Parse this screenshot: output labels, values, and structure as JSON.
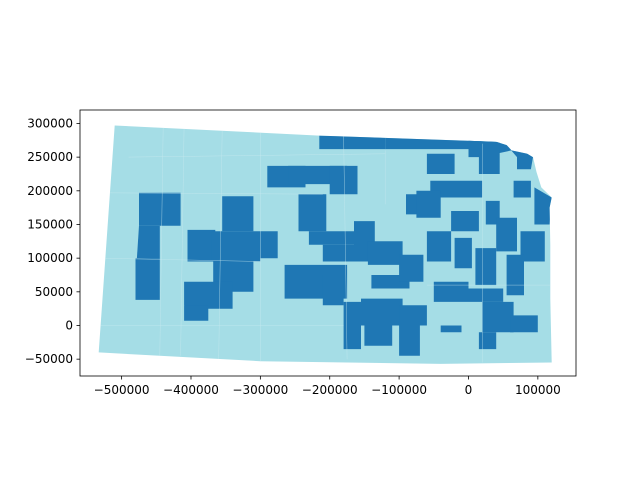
{
  "chart_data": {
    "type": "map",
    "title": "",
    "xlabel": "",
    "ylabel": "",
    "xlim": [
      -560000,
      155000
    ],
    "ylim": [
      -75000,
      320000
    ],
    "x_ticks": [
      -500000,
      -400000,
      -300000,
      -200000,
      -100000,
      0,
      100000
    ],
    "x_tick_labels": [
      "−500000",
      "−400000",
      "−300000",
      "−200000",
      "−100000",
      "0",
      "100000"
    ],
    "y_ticks": [
      -50000,
      0,
      50000,
      100000,
      150000,
      200000,
      250000,
      300000
    ],
    "y_tick_labels": [
      "−50000",
      "0",
      "50000",
      "100000",
      "150000",
      "200000",
      "250000",
      "300000"
    ],
    "grid": false,
    "legend": "none",
    "colors": {
      "base": "#a5dde6",
      "highlight": "#1f77b4",
      "boundary": "#c9e9ef"
    },
    "state_outline": [
      [
        -510000,
        297000
      ],
      [
        -215000,
        282000
      ],
      [
        40000,
        273000
      ],
      [
        55000,
        268000
      ],
      [
        62000,
        260000
      ],
      [
        85000,
        255000
      ],
      [
        93000,
        250000
      ],
      [
        98000,
        228000
      ],
      [
        105000,
        205000
      ],
      [
        120000,
        190000
      ],
      [
        117000,
        175000
      ],
      [
        118000,
        120000
      ],
      [
        118000,
        40000
      ],
      [
        120000,
        -55000
      ],
      [
        -40000,
        -57000
      ],
      [
        -300000,
        -53000
      ],
      [
        -533000,
        -40000
      ]
    ],
    "highlighted_regions": [
      [
        [
          -215000,
          282000
        ],
        [
          -120000,
          281000
        ],
        [
          -120000,
          262000
        ],
        [
          -215000,
          262000
        ]
      ],
      [
        [
          -120000,
          281000
        ],
        [
          40000,
          273000
        ],
        [
          55000,
          268000
        ],
        [
          62000,
          260000
        ],
        [
          40000,
          255000
        ],
        [
          25000,
          262000
        ],
        [
          -40000,
          262000
        ],
        [
          -120000,
          262000
        ]
      ],
      [
        [
          -290000,
          237000
        ],
        [
          -235000,
          237000
        ],
        [
          -235000,
          205000
        ],
        [
          -290000,
          205000
        ]
      ],
      [
        [
          -260000,
          237000
        ],
        [
          -175000,
          237000
        ],
        [
          -175000,
          210000
        ],
        [
          -260000,
          210000
        ]
      ],
      [
        [
          -200000,
          237000
        ],
        [
          -160000,
          237000
        ],
        [
          -160000,
          195000
        ],
        [
          -200000,
          195000
        ]
      ],
      [
        [
          -475000,
          197000
        ],
        [
          -415000,
          197000
        ],
        [
          -415000,
          148000
        ],
        [
          -475000,
          148000
        ]
      ],
      [
        [
          -475000,
          148000
        ],
        [
          -445000,
          148000
        ],
        [
          -445000,
          100000
        ],
        [
          -478000,
          100000
        ]
      ],
      [
        [
          -480000,
          100000
        ],
        [
          -445000,
          100000
        ],
        [
          -445000,
          38000
        ],
        [
          -480000,
          38000
        ]
      ],
      [
        [
          -405000,
          142000
        ],
        [
          -365000,
          142000
        ],
        [
          -365000,
          95000
        ],
        [
          -405000,
          95000
        ]
      ],
      [
        [
          -355000,
          192000
        ],
        [
          -310000,
          192000
        ],
        [
          -310000,
          140000
        ],
        [
          -355000,
          140000
        ]
      ],
      [
        [
          -370000,
          140000
        ],
        [
          -300000,
          140000
        ],
        [
          -300000,
          95000
        ],
        [
          -370000,
          95000
        ]
      ],
      [
        [
          -368000,
          95000
        ],
        [
          -310000,
          95000
        ],
        [
          -310000,
          50000
        ],
        [
          -368000,
          50000
        ]
      ],
      [
        [
          -410000,
          65000
        ],
        [
          -340000,
          65000
        ],
        [
          -340000,
          25000
        ],
        [
          -395000,
          25000
        ],
        [
          -410000,
          30000
        ]
      ],
      [
        [
          -410000,
          30000
        ],
        [
          -375000,
          30000
        ],
        [
          -375000,
          7000
        ],
        [
          -410000,
          7000
        ]
      ],
      [
        [
          -300000,
          140000
        ],
        [
          -275000,
          140000
        ],
        [
          -275000,
          100000
        ],
        [
          -300000,
          100000
        ]
      ],
      [
        [
          -245000,
          195000
        ],
        [
          -205000,
          195000
        ],
        [
          -205000,
          140000
        ],
        [
          -245000,
          140000
        ]
      ],
      [
        [
          -230000,
          140000
        ],
        [
          -165000,
          140000
        ],
        [
          -165000,
          120000
        ],
        [
          -230000,
          120000
        ]
      ],
      [
        [
          -210000,
          120000
        ],
        [
          -160000,
          120000
        ],
        [
          -160000,
          95000
        ],
        [
          -210000,
          95000
        ]
      ],
      [
        [
          -165000,
          155000
        ],
        [
          -135000,
          155000
        ],
        [
          -135000,
          95000
        ],
        [
          -165000,
          95000
        ]
      ],
      [
        [
          -145000,
          125000
        ],
        [
          -95000,
          125000
        ],
        [
          -95000,
          90000
        ],
        [
          -145000,
          90000
        ]
      ],
      [
        [
          -265000,
          90000
        ],
        [
          -175000,
          90000
        ],
        [
          -175000,
          40000
        ],
        [
          -265000,
          40000
        ]
      ],
      [
        [
          -210000,
          75000
        ],
        [
          -180000,
          75000
        ],
        [
          -180000,
          30000
        ],
        [
          -210000,
          30000
        ]
      ],
      [
        [
          -140000,
          75000
        ],
        [
          -85000,
          75000
        ],
        [
          -85000,
          55000
        ],
        [
          -140000,
          55000
        ]
      ],
      [
        [
          -100000,
          105000
        ],
        [
          -65000,
          105000
        ],
        [
          -65000,
          65000
        ],
        [
          -100000,
          65000
        ]
      ],
      [
        [
          -90000,
          195000
        ],
        [
          -55000,
          195000
        ],
        [
          -55000,
          165000
        ],
        [
          -90000,
          165000
        ]
      ],
      [
        [
          -60000,
          255000
        ],
        [
          -20000,
          255000
        ],
        [
          -20000,
          225000
        ],
        [
          -60000,
          225000
        ]
      ],
      [
        [
          -55000,
          215000
        ],
        [
          20000,
          215000
        ],
        [
          20000,
          190000
        ],
        [
          -55000,
          190000
        ]
      ],
      [
        [
          -75000,
          200000
        ],
        [
          -40000,
          200000
        ],
        [
          -40000,
          160000
        ],
        [
          -75000,
          160000
        ]
      ],
      [
        [
          -60000,
          140000
        ],
        [
          -25000,
          140000
        ],
        [
          -25000,
          95000
        ],
        [
          -60000,
          95000
        ]
      ],
      [
        [
          -25000,
          170000
        ],
        [
          15000,
          170000
        ],
        [
          15000,
          140000
        ],
        [
          -25000,
          140000
        ]
      ],
      [
        [
          -20000,
          130000
        ],
        [
          5000,
          130000
        ],
        [
          5000,
          85000
        ],
        [
          -20000,
          85000
        ]
      ],
      [
        [
          -50000,
          65000
        ],
        [
          0,
          65000
        ],
        [
          0,
          35000
        ],
        [
          -50000,
          35000
        ]
      ],
      [
        [
          0,
          55000
        ],
        [
          50000,
          55000
        ],
        [
          50000,
          35000
        ],
        [
          0,
          35000
        ]
      ],
      [
        [
          0,
          275000
        ],
        [
          45000,
          272000
        ],
        [
          45000,
          225000
        ],
        [
          15000,
          225000
        ],
        [
          15000,
          250000
        ],
        [
          0,
          250000
        ]
      ],
      [
        [
          55000,
          268000
        ],
        [
          85000,
          255000
        ],
        [
          93000,
          250000
        ],
        [
          90000,
          232000
        ],
        [
          70000,
          232000
        ],
        [
          70000,
          250000
        ]
      ],
      [
        [
          65000,
          215000
        ],
        [
          90000,
          215000
        ],
        [
          90000,
          190000
        ],
        [
          65000,
          190000
        ]
      ],
      [
        [
          95000,
          205000
        ],
        [
          120000,
          190000
        ],
        [
          117000,
          150000
        ],
        [
          95000,
          150000
        ]
      ],
      [
        [
          25000,
          185000
        ],
        [
          45000,
          185000
        ],
        [
          45000,
          150000
        ],
        [
          25000,
          150000
        ]
      ],
      [
        [
          40000,
          160000
        ],
        [
          70000,
          160000
        ],
        [
          70000,
          110000
        ],
        [
          40000,
          110000
        ]
      ],
      [
        [
          75000,
          140000
        ],
        [
          110000,
          140000
        ],
        [
          110000,
          95000
        ],
        [
          75000,
          95000
        ]
      ],
      [
        [
          10000,
          115000
        ],
        [
          40000,
          115000
        ],
        [
          40000,
          60000
        ],
        [
          10000,
          60000
        ]
      ],
      [
        [
          55000,
          105000
        ],
        [
          80000,
          105000
        ],
        [
          80000,
          45000
        ],
        [
          55000,
          45000
        ]
      ],
      [
        [
          20000,
          35000
        ],
        [
          65000,
          35000
        ],
        [
          65000,
          -10000
        ],
        [
          20000,
          -10000
        ]
      ],
      [
        [
          60000,
          15000
        ],
        [
          100000,
          15000
        ],
        [
          100000,
          -10000
        ],
        [
          60000,
          -10000
        ]
      ],
      [
        [
          -180000,
          35000
        ],
        [
          -155000,
          35000
        ],
        [
          -155000,
          -35000
        ],
        [
          -180000,
          -35000
        ]
      ],
      [
        [
          -155000,
          40000
        ],
        [
          -95000,
          40000
        ],
        [
          -95000,
          0
        ],
        [
          -155000,
          0
        ]
      ],
      [
        [
          -150000,
          0
        ],
        [
          -110000,
          0
        ],
        [
          -110000,
          -30000
        ],
        [
          -150000,
          -30000
        ]
      ],
      [
        [
          -100000,
          30000
        ],
        [
          -60000,
          30000
        ],
        [
          -60000,
          0
        ],
        [
          -100000,
          0
        ]
      ],
      [
        [
          -100000,
          0
        ],
        [
          -70000,
          0
        ],
        [
          -70000,
          -45000
        ],
        [
          -100000,
          -45000
        ]
      ],
      [
        [
          -40000,
          0
        ],
        [
          -10000,
          0
        ],
        [
          -10000,
          -10000
        ],
        [
          -40000,
          -10000
        ]
      ],
      [
        [
          15000,
          -10000
        ],
        [
          40000,
          -10000
        ],
        [
          40000,
          -35000
        ],
        [
          15000,
          -35000
        ]
      ]
    ],
    "internal_boundaries": [
      [
        [
          -410000,
          297000
        ],
        [
          -415000,
          -45000
        ]
      ],
      [
        [
          -300000,
          292000
        ],
        [
          -300000,
          -53000
        ]
      ],
      [
        [
          -530000,
          197000
        ],
        [
          -210000,
          195000
        ]
      ],
      [
        [
          -530000,
          100000
        ],
        [
          -300000,
          95000
        ]
      ],
      [
        [
          -490000,
          250000
        ],
        [
          -120000,
          255000
        ]
      ],
      [
        [
          -180000,
          282000
        ],
        [
          -175000,
          -50000
        ]
      ],
      [
        [
          -440000,
          297000
        ],
        [
          -445000,
          -45000
        ]
      ],
      [
        [
          -355000,
          292000
        ],
        [
          -360000,
          -50000
        ]
      ],
      [
        [
          -533000,
          0
        ],
        [
          -180000,
          0
        ]
      ],
      [
        [
          -120000,
          260000
        ],
        [
          -120000,
          180000
        ]
      ],
      [
        [
          20000,
          270000
        ],
        [
          20000,
          -55000
        ]
      ],
      [
        [
          -60000,
          60000
        ],
        [
          118000,
          60000
        ]
      ]
    ]
  }
}
